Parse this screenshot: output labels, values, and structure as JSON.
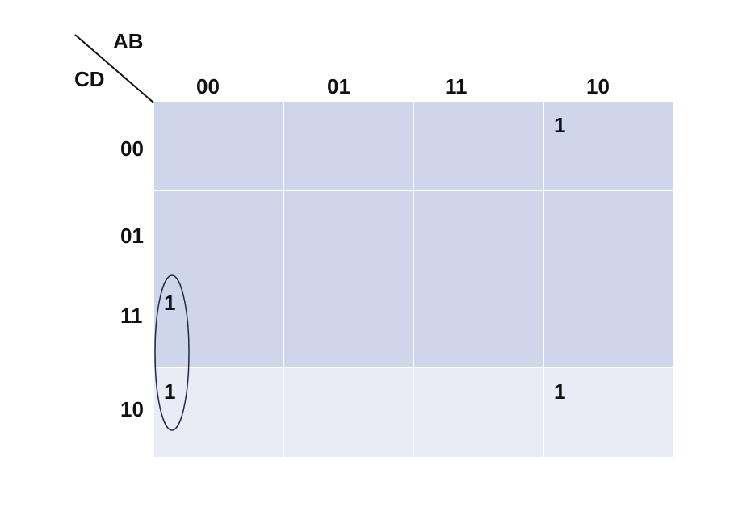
{
  "corner": {
    "col_var": "AB",
    "row_var": "CD"
  },
  "col_headers": [
    "00",
    "01",
    "11",
    "10"
  ],
  "row_headers": [
    "00",
    "01",
    "11",
    "10"
  ],
  "cells": [
    [
      "",
      "",
      "",
      "1"
    ],
    [
      "",
      "",
      "",
      ""
    ],
    [
      "1",
      "",
      "",
      ""
    ],
    [
      "1",
      "",
      "",
      "1"
    ]
  ],
  "colors": {
    "cell_dark": "#cfd5ea",
    "cell_light": "#e9ebf5",
    "divider": "#ffffff",
    "loop": "#1f2a44"
  },
  "groupings": [
    {
      "cells": [
        [
          2,
          0
        ],
        [
          3,
          0
        ]
      ],
      "shape": "ellipse"
    }
  ]
}
